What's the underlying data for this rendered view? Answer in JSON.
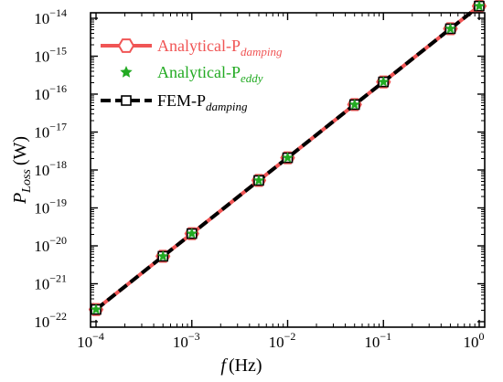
{
  "chart_data": {
    "type": "line",
    "xlabel": {
      "var": "f",
      "unit": "(Hz)"
    },
    "ylabel": {
      "var": "P",
      "sub": "Loss",
      "unit": "(W)"
    },
    "xscale": "log",
    "yscale": "log",
    "xlim": [
      0.0001,
      1
    ],
    "ylim": [
      1e-22,
      1e-14
    ],
    "x_ticks": [
      {
        "base": "10",
        "exp": "−4"
      },
      {
        "base": "10",
        "exp": "−3"
      },
      {
        "base": "10",
        "exp": "−2"
      },
      {
        "base": "10",
        "exp": "−1"
      },
      {
        "base": "10",
        "exp": "0"
      }
    ],
    "y_ticks": [
      {
        "base": "10",
        "exp": "−22"
      },
      {
        "base": "10",
        "exp": "−21"
      },
      {
        "base": "10",
        "exp": "−20"
      },
      {
        "base": "10",
        "exp": "−19"
      },
      {
        "base": "10",
        "exp": "−18"
      },
      {
        "base": "10",
        "exp": "−17"
      },
      {
        "base": "10",
        "exp": "−16"
      },
      {
        "base": "10",
        "exp": "−15"
      },
      {
        "base": "10",
        "exp": "−14"
      }
    ],
    "x": [
      0.0001,
      0.0005,
      0.001,
      0.005,
      0.01,
      0.05,
      0.1,
      0.5,
      1
    ],
    "series": [
      {
        "name": "Analytical-P",
        "name_sub": "damping",
        "color": "#f05555",
        "style": "solid-line-hexagon-marker",
        "values": [
          2.1e-22,
          5.3e-21,
          2.1e-20,
          5.3e-19,
          2.1e-18,
          5.3e-17,
          2.1e-16,
          5.3e-15,
          2.1e-14
        ]
      },
      {
        "name": "Analytical-P",
        "name_sub": "eddy",
        "color": "#22aa22",
        "style": "star-marker",
        "values": [
          2.1e-22,
          5.3e-21,
          2.1e-20,
          5.3e-19,
          2.1e-18,
          5.3e-17,
          2.1e-16,
          5.3e-15,
          2.1e-14
        ]
      },
      {
        "name": "FEM-P",
        "name_sub": "damping",
        "color": "#000000",
        "style": "dashed-line-square-marker",
        "values": [
          2.1e-22,
          5.3e-21,
          2.1e-20,
          5.3e-19,
          2.1e-18,
          5.3e-17,
          2.1e-16,
          5.3e-15,
          2.1e-14
        ]
      }
    ],
    "legend_position": "top-left",
    "grid": false
  }
}
